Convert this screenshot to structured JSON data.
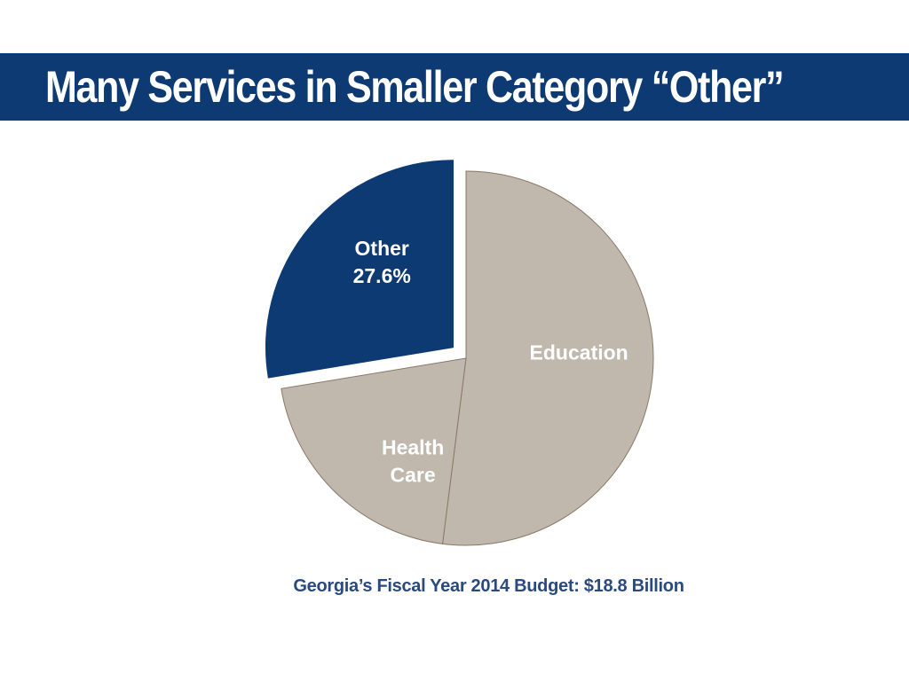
{
  "slide": {
    "title": "Many Services in Smaller Category “Other”",
    "caption": "Georgia’s Fiscal Year 2014 Budget:  $18.8 Billion"
  },
  "chart_data": {
    "type": "pie",
    "title": "",
    "slices": [
      {
        "label": "Education",
        "label_lines": [
          "Education"
        ],
        "value": 52.0,
        "color": "#c0b8ad",
        "text_color": "#ffffff",
        "exploded": false
      },
      {
        "label": "Health Care",
        "label_lines": [
          "Health",
          "Care"
        ],
        "value": 20.4,
        "color": "#c0b8ad",
        "text_color": "#ffffff",
        "exploded": false
      },
      {
        "label": "Other",
        "label_lines": [
          "Other",
          "27.6%"
        ],
        "value": 27.6,
        "color": "#0d3a72",
        "text_color": "#ffffff",
        "exploded": true
      }
    ],
    "start": "12 o'clock",
    "direction": "clockwise",
    "slice_border_color": "#8a7868"
  },
  "colors": {
    "title_bar": "#0d3a72",
    "title_text": "#ffffff",
    "caption_text": "#2a4a7f"
  }
}
